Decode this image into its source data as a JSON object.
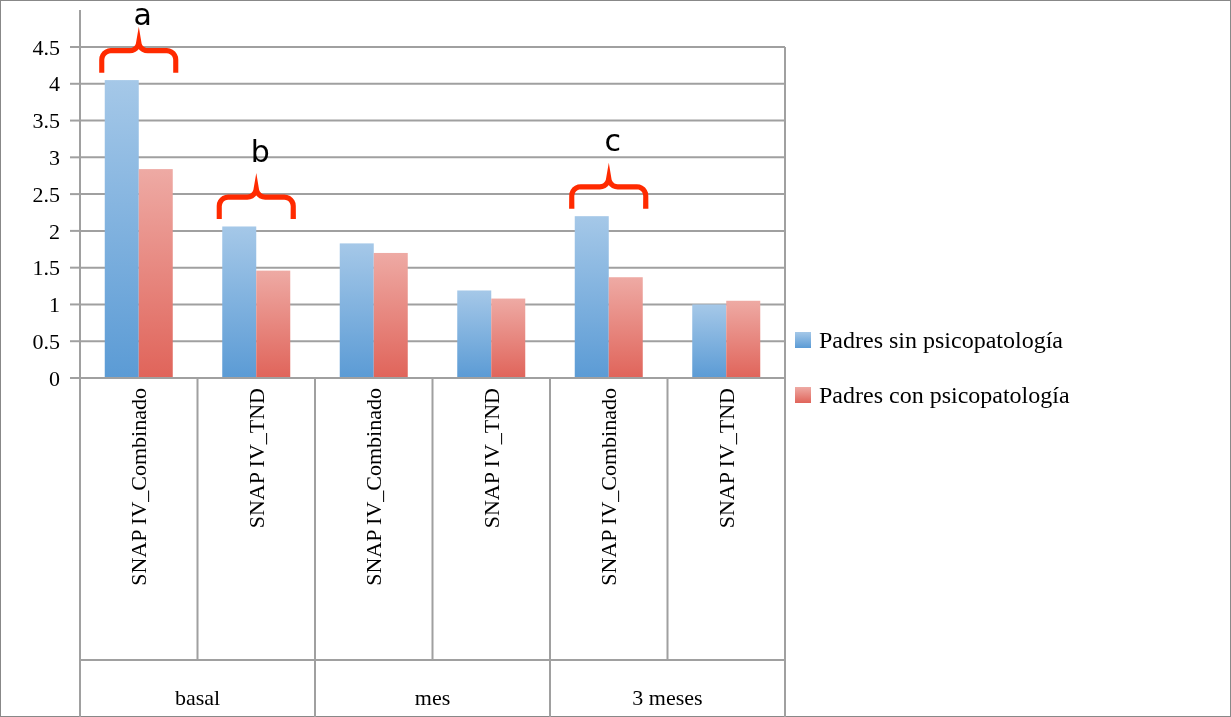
{
  "chart_data": {
    "type": "bar",
    "categories": [
      "SNAP IV_Combinado",
      "SNAP IV_TND",
      "SNAP IV_Combinado",
      "SNAP IV_TND",
      "SNAP IV_Combinado",
      "SNAP IV_TND"
    ],
    "series": [
      {
        "name": "Padres sin psicopatología",
        "color": "#5b9bd5",
        "values": [
          4.05,
          2.06,
          1.83,
          1.19,
          2.2,
          1.0
        ]
      },
      {
        "name": "Padres con psicopatología",
        "color": "#e0645a",
        "values": [
          2.84,
          1.46,
          1.7,
          1.08,
          1.37,
          1.05
        ]
      }
    ],
    "ylim": [
      0,
      4.5
    ],
    "yticks": [
      0,
      0.5,
      1,
      1.5,
      2,
      2.5,
      3,
      3.5,
      4,
      4.5
    ],
    "grid": "y",
    "legend": "right",
    "annotations": [
      "basal",
      "mes",
      "3 meses",
      "a",
      "b",
      "c"
    ]
  }
}
